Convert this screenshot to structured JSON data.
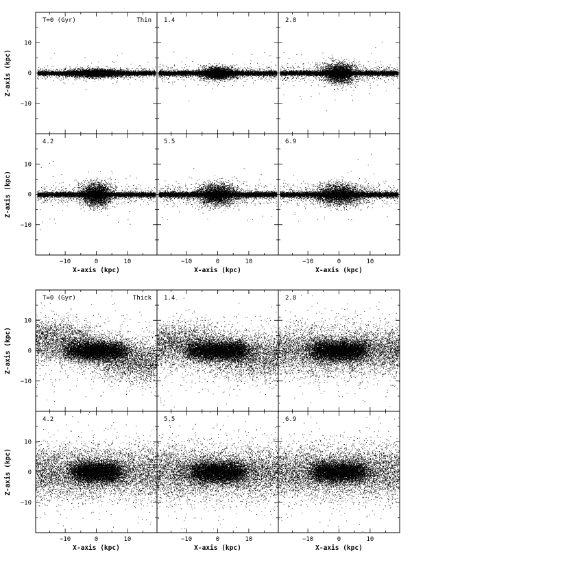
{
  "figure": {
    "axis_labels": {
      "x": "X-axis (kpc)",
      "y": "Z-axis (kpc)"
    },
    "tick_labels": {
      "x": [
        "−10",
        "0",
        "10"
      ],
      "y": [
        "10",
        "0",
        "−10"
      ]
    },
    "ink_color": "#000000",
    "background": "#ffffff"
  },
  "chart_data": [
    {
      "type": "scatter",
      "group": "Thin",
      "panel_label": "T=0 (Gyr)",
      "corner_label": "Thin",
      "time_gyr": 0,
      "xlim": [
        -19.5,
        19.5
      ],
      "ylim": [
        -20,
        20
      ],
      "xlabel": "",
      "ylabel": "Z-axis (kpc)",
      "x_ticks": [
        -10,
        0,
        10
      ],
      "y_ticks": [
        10,
        0,
        -10
      ],
      "profile": {
        "disk_half_thickness": 0.6,
        "disk_halo": 1.0,
        "bulge_half_width": 8,
        "bulge_half_height": 1.1,
        "envelope_half_height": 0,
        "warp": 0
      }
    },
    {
      "type": "scatter",
      "group": "Thin",
      "panel_label": "1.4",
      "corner_label": "",
      "time_gyr": 1.4,
      "xlim": [
        -19.5,
        19.5
      ],
      "ylim": [
        -20,
        20
      ],
      "xlabel": "",
      "ylabel": "",
      "x_ticks": [
        -10,
        0,
        10
      ],
      "y_ticks": [
        10,
        0,
        -10
      ],
      "profile": {
        "disk_half_thickness": 0.7,
        "disk_halo": 1.2,
        "bulge_half_width": 5,
        "bulge_half_height": 1.6,
        "envelope_half_height": 0,
        "warp": 0
      }
    },
    {
      "type": "scatter",
      "group": "Thin",
      "panel_label": "2.8",
      "corner_label": "",
      "time_gyr": 2.8,
      "xlim": [
        -19.5,
        19.5
      ],
      "ylim": [
        -20,
        20
      ],
      "xlabel": "",
      "ylabel": "",
      "x_ticks": [
        -10,
        0,
        10
      ],
      "y_ticks": [
        10,
        0,
        -10
      ],
      "profile": {
        "disk_half_thickness": 0.7,
        "disk_halo": 1.4,
        "bulge_half_width": 5,
        "bulge_half_height": 2.8,
        "envelope_half_height": 0,
        "warp": 0
      }
    },
    {
      "type": "scatter",
      "group": "Thin",
      "panel_label": "4.2",
      "corner_label": "",
      "time_gyr": 4.2,
      "xlim": [
        -19.5,
        19.5
      ],
      "ylim": [
        -20,
        20
      ],
      "xlabel": "",
      "ylabel": "Z-axis (kpc)",
      "x_ticks": [
        -10,
        0,
        10
      ],
      "y_ticks": [
        10,
        0,
        -10
      ],
      "profile": {
        "disk_half_thickness": 0.7,
        "disk_halo": 1.5,
        "bulge_half_width": 4.5,
        "bulge_half_height": 3.2,
        "envelope_half_height": 0,
        "warp": 0
      }
    },
    {
      "type": "scatter",
      "group": "Thin",
      "panel_label": "5.5",
      "corner_label": "",
      "time_gyr": 5.5,
      "xlim": [
        -19.5,
        19.5
      ],
      "ylim": [
        -20,
        20
      ],
      "xlabel": "",
      "ylabel": "",
      "x_ticks": [
        -10,
        0,
        10
      ],
      "y_ticks": [
        10,
        0,
        -10
      ],
      "profile": {
        "disk_half_thickness": 0.8,
        "disk_halo": 1.6,
        "bulge_half_width": 6,
        "bulge_half_height": 3.0,
        "envelope_half_height": 0,
        "warp": 0
      }
    },
    {
      "type": "scatter",
      "group": "Thin",
      "panel_label": "6.9",
      "corner_label": "",
      "time_gyr": 6.9,
      "xlim": [
        -19.5,
        19.5
      ],
      "ylim": [
        -20,
        20
      ],
      "xlabel": "",
      "ylabel": "",
      "x_ticks": [
        -10,
        0,
        10
      ],
      "y_ticks": [
        10,
        0,
        -10
      ],
      "profile": {
        "disk_half_thickness": 0.8,
        "disk_halo": 1.7,
        "bulge_half_width": 7,
        "bulge_half_height": 3.0,
        "envelope_half_height": 0,
        "warp": 0
      }
    },
    {
      "type": "scatter",
      "group": "Thin",
      "panel_label": "",
      "corner_label": "",
      "time_gyr": null,
      "is_axis_row": true,
      "xlabel": "X-axis (kpc)"
    },
    {
      "type": "scatter",
      "group": "Thick",
      "panel_label": "T=0 (Gyr)",
      "corner_label": "Thick",
      "time_gyr": 0,
      "xlim": [
        -19.5,
        19.5
      ],
      "ylim": [
        -20,
        20
      ],
      "xlabel": "",
      "ylabel": "Z-axis (kpc)",
      "x_ticks": [
        -10,
        0,
        10
      ],
      "y_ticks": [
        10,
        0,
        -10
      ],
      "profile": {
        "disk_half_thickness": 0,
        "disk_halo": 0,
        "bulge_half_width": 9,
        "bulge_half_height": 3.0,
        "envelope_half_height": 6.0,
        "warp": 4.5
      }
    },
    {
      "type": "scatter",
      "group": "Thick",
      "panel_label": "1.4",
      "corner_label": "",
      "time_gyr": 1.4,
      "xlim": [
        -19.5,
        19.5
      ],
      "ylim": [
        -20,
        20
      ],
      "xlabel": "",
      "ylabel": "",
      "x_ticks": [
        -10,
        0,
        10
      ],
      "y_ticks": [
        10,
        0,
        -10
      ],
      "profile": {
        "disk_half_thickness": 0,
        "disk_halo": 0,
        "bulge_half_width": 9,
        "bulge_half_height": 3.0,
        "envelope_half_height": 6.5,
        "warp": 2.5
      }
    },
    {
      "type": "scatter",
      "group": "Thick",
      "panel_label": "2.8",
      "corner_label": "",
      "time_gyr": 2.8,
      "xlim": [
        -19.5,
        19.5
      ],
      "ylim": [
        -20,
        20
      ],
      "xlabel": "",
      "ylabel": "",
      "x_ticks": [
        -10,
        0,
        10
      ],
      "y_ticks": [
        10,
        0,
        -10
      ],
      "profile": {
        "disk_half_thickness": 0,
        "disk_halo": 0,
        "bulge_half_width": 8,
        "bulge_half_height": 3.2,
        "envelope_half_height": 7.0,
        "warp": 0
      }
    },
    {
      "type": "scatter",
      "group": "Thick",
      "panel_label": "4.2",
      "corner_label": "",
      "time_gyr": 4.2,
      "xlim": [
        -19.5,
        19.5
      ],
      "ylim": [
        -20,
        20
      ],
      "xlabel": "X-axis (kpc)",
      "ylabel": "Z-axis (kpc)",
      "x_ticks": [
        -10,
        0,
        10
      ],
      "y_ticks": [
        10,
        0,
        -10
      ],
      "profile": {
        "disk_half_thickness": 0,
        "disk_halo": 0,
        "bulge_half_width": 7,
        "bulge_half_height": 3.3,
        "envelope_half_height": 7.5,
        "warp": 0
      }
    },
    {
      "type": "scatter",
      "group": "Thick",
      "panel_label": "5.5",
      "corner_label": "",
      "time_gyr": 5.5,
      "xlim": [
        -19.5,
        19.5
      ],
      "ylim": [
        -20,
        20
      ],
      "xlabel": "X-axis (kpc)",
      "ylabel": "",
      "x_ticks": [
        -10,
        0,
        10
      ],
      "y_ticks": [
        10,
        0,
        -10
      ],
      "profile": {
        "disk_half_thickness": 0,
        "disk_halo": 0,
        "bulge_half_width": 8,
        "bulge_half_height": 3.3,
        "envelope_half_height": 7.5,
        "warp": 0
      }
    },
    {
      "type": "scatter",
      "group": "Thick",
      "panel_label": "6.9",
      "corner_label": "",
      "time_gyr": 6.9,
      "xlim": [
        -19.5,
        19.5
      ],
      "ylim": [
        -20,
        20
      ],
      "xlabel": "X-axis (kpc)",
      "ylabel": "",
      "x_ticks": [
        -10,
        0,
        10
      ],
      "y_ticks": [
        10,
        0,
        -10
      ],
      "profile": {
        "disk_half_thickness": 0,
        "disk_halo": 0,
        "bulge_half_width": 8,
        "bulge_half_height": 3.3,
        "envelope_half_height": 7.5,
        "warp": 0
      }
    }
  ]
}
